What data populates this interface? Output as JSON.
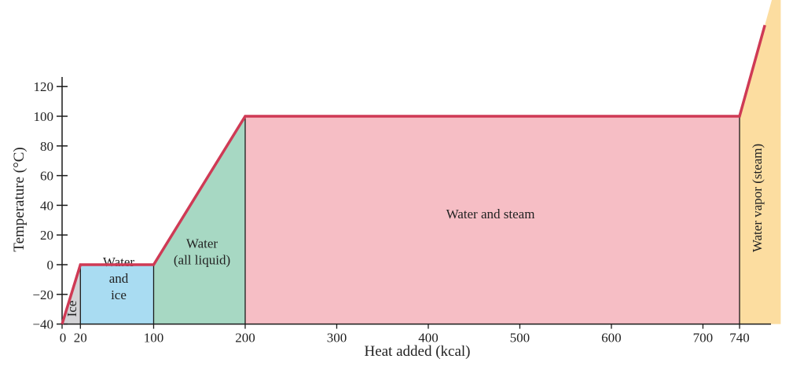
{
  "chart_data": {
    "type": "line",
    "xlabel": "Heat added (kcal)",
    "ylabel": "Temperature (°C)",
    "xlim": [
      0,
      785
    ],
    "ylim": [
      -40,
      120
    ],
    "x_ticks": [
      0,
      20,
      100,
      200,
      300,
      400,
      500,
      600,
      700,
      740
    ],
    "y_ticks": [
      -40,
      -20,
      0,
      20,
      40,
      60,
      80,
      100,
      120
    ],
    "series": [
      {
        "x": [
          0,
          20,
          100,
          200,
          740,
          785
        ],
        "y": [
          -40,
          0,
          0,
          100,
          100,
          200
        ]
      }
    ],
    "line_color": "#cf3a55",
    "regions": [
      {
        "label": "Ice",
        "x_start": 0,
        "x_end": 20,
        "color": "#d3d3d6",
        "orientation": "vertical"
      },
      {
        "label": "Water and ice",
        "lines": [
          "Water",
          "and",
          "ice"
        ],
        "x_start": 20,
        "x_end": 100,
        "color": "#a9dcf2",
        "orientation": "horizontal"
      },
      {
        "label": "Water (all liquid)",
        "lines": [
          "Water",
          "(all liquid)"
        ],
        "x_start": 100,
        "x_end": 200,
        "color": "#a7d8c3",
        "orientation": "horizontal"
      },
      {
        "label": "Water and steam",
        "lines": [
          "Water and steam"
        ],
        "x_start": 200,
        "x_end": 740,
        "color": "#f6bec5",
        "orientation": "horizontal"
      },
      {
        "label": "Water vapor (steam)",
        "x_start": 740,
        "x_end": 785,
        "color": "#fcdda0",
        "orientation": "vertical"
      }
    ]
  }
}
